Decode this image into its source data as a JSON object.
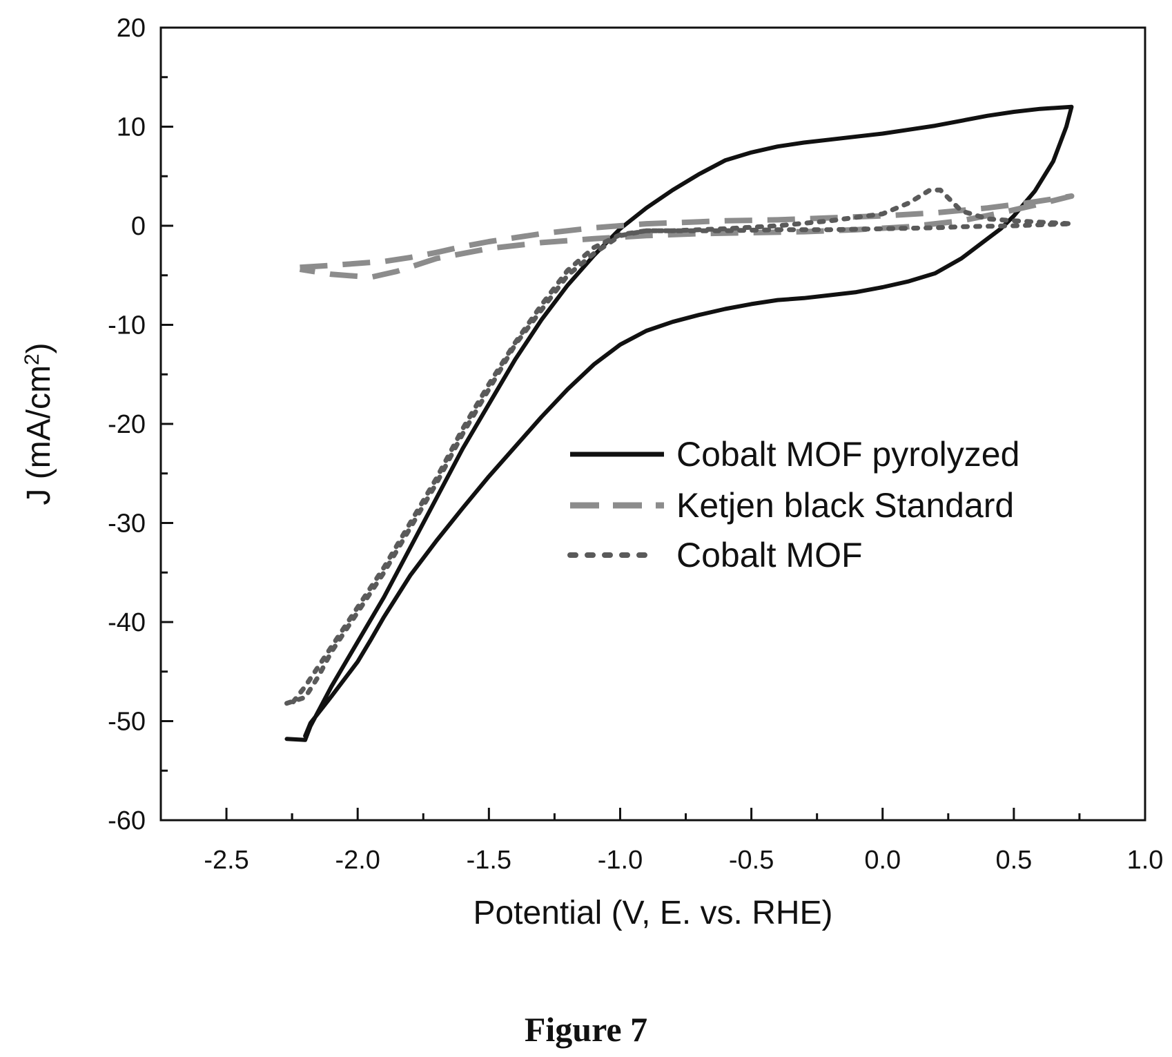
{
  "chart_data": {
    "type": "line",
    "xlabel": "Potential (V, E. vs. RHE)",
    "ylabel": "J (mA/cm²)",
    "ylabel_main": "J (mA/cm",
    "ylabel_sup": "2",
    "ylabel_close": ")",
    "xlim": [
      -2.75,
      1.0
    ],
    "ylim": [
      -60,
      20
    ],
    "xticks": [
      -2.5,
      -2.0,
      -1.5,
      -1.0,
      -0.5,
      0.0,
      0.5,
      1.0
    ],
    "xtick_labels": [
      "-2.5",
      "-2.0",
      "-1.5",
      "-1.0",
      "-0.5",
      "0.0",
      "0.5",
      "1.0"
    ],
    "yticks": [
      20,
      10,
      0,
      -10,
      -20,
      -30,
      -40,
      -50,
      -60
    ],
    "ytick_labels": [
      "20",
      "10",
      "0",
      "-10",
      "-20",
      "-30",
      "-40",
      "-50",
      "-60"
    ],
    "legend_position": "center-right",
    "grid": false,
    "series": [
      {
        "name": "Cobalt MOF pyrolyzed",
        "style": "solid",
        "color": "#111111",
        "points": [
          [
            -2.27,
            -51.8
          ],
          [
            -2.2,
            -51.9
          ],
          [
            -2.18,
            -50.5
          ],
          [
            -2.1,
            -46.5
          ],
          [
            -2.0,
            -42.0
          ],
          [
            -1.9,
            -37.5
          ],
          [
            -1.8,
            -32.5
          ],
          [
            -1.7,
            -27.5
          ],
          [
            -1.6,
            -22.5
          ],
          [
            -1.5,
            -18.0
          ],
          [
            -1.4,
            -13.5
          ],
          [
            -1.3,
            -9.5
          ],
          [
            -1.2,
            -6.0
          ],
          [
            -1.1,
            -3.0
          ],
          [
            -1.0,
            -0.3
          ],
          [
            -0.9,
            1.8
          ],
          [
            -0.8,
            3.6
          ],
          [
            -0.7,
            5.2
          ],
          [
            -0.6,
            6.6
          ],
          [
            -0.5,
            7.4
          ],
          [
            -0.4,
            8.0
          ],
          [
            -0.3,
            8.4
          ],
          [
            -0.2,
            8.7
          ],
          [
            -0.1,
            9.0
          ],
          [
            0.0,
            9.3
          ],
          [
            0.1,
            9.7
          ],
          [
            0.2,
            10.1
          ],
          [
            0.3,
            10.6
          ],
          [
            0.4,
            11.1
          ],
          [
            0.5,
            11.5
          ],
          [
            0.6,
            11.8
          ],
          [
            0.72,
            12.0
          ],
          [
            0.7,
            10.0
          ],
          [
            0.65,
            6.5
          ],
          [
            0.58,
            3.5
          ],
          [
            0.5,
            1.0
          ],
          [
            0.45,
            -0.3
          ],
          [
            0.4,
            -1.3
          ],
          [
            0.3,
            -3.3
          ],
          [
            0.2,
            -4.8
          ],
          [
            0.1,
            -5.6
          ],
          [
            0.0,
            -6.2
          ],
          [
            -0.1,
            -6.7
          ],
          [
            -0.2,
            -7.0
          ],
          [
            -0.3,
            -7.3
          ],
          [
            -0.4,
            -7.5
          ],
          [
            -0.5,
            -7.9
          ],
          [
            -0.6,
            -8.4
          ],
          [
            -0.7,
            -9.0
          ],
          [
            -0.8,
            -9.7
          ],
          [
            -0.9,
            -10.6
          ],
          [
            -1.0,
            -12.0
          ],
          [
            -1.1,
            -14.0
          ],
          [
            -1.2,
            -16.5
          ],
          [
            -1.3,
            -19.3
          ],
          [
            -1.4,
            -22.3
          ],
          [
            -1.5,
            -25.3
          ],
          [
            -1.6,
            -28.5
          ],
          [
            -1.7,
            -31.8
          ],
          [
            -1.8,
            -35.3
          ],
          [
            -1.9,
            -39.5
          ],
          [
            -1.95,
            -41.8
          ],
          [
            -2.0,
            -44.0
          ],
          [
            -2.1,
            -47.5
          ],
          [
            -2.18,
            -50.2
          ],
          [
            -2.2,
            -51.5
          ]
        ]
      },
      {
        "name": "Ketjen black Standard",
        "style": "dashed",
        "color": "#8c8c8c",
        "points": [
          [
            -2.22,
            -4.2
          ],
          [
            -2.1,
            -4.0
          ],
          [
            -2.0,
            -3.8
          ],
          [
            -1.9,
            -3.6
          ],
          [
            -1.8,
            -3.2
          ],
          [
            -1.7,
            -2.7
          ],
          [
            -1.6,
            -2.1
          ],
          [
            -1.5,
            -1.6
          ],
          [
            -1.4,
            -1.2
          ],
          [
            -1.3,
            -0.8
          ],
          [
            -1.2,
            -0.5
          ],
          [
            -1.1,
            -0.2
          ],
          [
            -1.0,
            0.0
          ],
          [
            -0.9,
            0.2
          ],
          [
            -0.8,
            0.3
          ],
          [
            -0.6,
            0.5
          ],
          [
            -0.4,
            0.6
          ],
          [
            -0.2,
            0.8
          ],
          [
            0.0,
            1.0
          ],
          [
            0.2,
            1.3
          ],
          [
            0.4,
            1.8
          ],
          [
            0.55,
            2.3
          ],
          [
            0.72,
            3.0
          ],
          [
            0.6,
            2.2
          ],
          [
            0.45,
            1.3
          ],
          [
            0.3,
            0.5
          ],
          [
            0.1,
            -0.1
          ],
          [
            -0.1,
            -0.4
          ],
          [
            -0.3,
            -0.6
          ],
          [
            -0.5,
            -0.7
          ],
          [
            -0.7,
            -0.8
          ],
          [
            -0.9,
            -1.0
          ],
          [
            -1.1,
            -1.3
          ],
          [
            -1.3,
            -1.7
          ],
          [
            -1.5,
            -2.3
          ],
          [
            -1.7,
            -3.3
          ],
          [
            -1.85,
            -4.6
          ],
          [
            -1.95,
            -5.2
          ],
          [
            -2.1,
            -4.9
          ],
          [
            -2.22,
            -4.4
          ]
        ]
      },
      {
        "name": "Cobalt MOF",
        "style": "dotted",
        "color": "#5a5a5a",
        "points": [
          [
            -2.27,
            -48.2
          ],
          [
            -2.2,
            -47.6
          ],
          [
            -2.15,
            -45.5
          ],
          [
            -2.1,
            -43.0
          ],
          [
            -2.0,
            -39.0
          ],
          [
            -1.9,
            -35.0
          ],
          [
            -1.8,
            -30.5
          ],
          [
            -1.7,
            -26.0
          ],
          [
            -1.6,
            -21.0
          ],
          [
            -1.5,
            -16.5
          ],
          [
            -1.4,
            -12.0
          ],
          [
            -1.3,
            -8.5
          ],
          [
            -1.2,
            -5.0
          ],
          [
            -1.1,
            -2.8
          ],
          [
            -1.0,
            -1.0
          ],
          [
            -0.9,
            -0.5
          ],
          [
            -0.8,
            -0.5
          ],
          [
            -0.6,
            -0.3
          ],
          [
            -0.4,
            0.0
          ],
          [
            -0.2,
            0.5
          ],
          [
            0.0,
            1.2
          ],
          [
            0.1,
            2.3
          ],
          [
            0.18,
            3.6
          ],
          [
            0.22,
            3.6
          ],
          [
            0.3,
            1.5
          ],
          [
            0.4,
            0.7
          ],
          [
            0.5,
            0.5
          ],
          [
            0.72,
            0.2
          ],
          [
            0.6,
            0.1
          ],
          [
            0.5,
            0.0
          ],
          [
            0.3,
            -0.1
          ],
          [
            0.2,
            -0.2
          ],
          [
            0.0,
            -0.3
          ],
          [
            -0.2,
            -0.4
          ],
          [
            -0.4,
            -0.4
          ],
          [
            -0.6,
            -0.5
          ],
          [
            -0.8,
            -0.5
          ],
          [
            -0.9,
            -0.5
          ],
          [
            -1.0,
            -0.9
          ],
          [
            -1.1,
            -2.2
          ],
          [
            -1.2,
            -4.5
          ],
          [
            -1.3,
            -8.0
          ],
          [
            -1.4,
            -11.8
          ],
          [
            -1.5,
            -16.0
          ],
          [
            -1.6,
            -20.5
          ],
          [
            -1.7,
            -25.5
          ],
          [
            -1.8,
            -30.0
          ],
          [
            -1.9,
            -34.5
          ],
          [
            -2.0,
            -38.5
          ],
          [
            -2.1,
            -42.5
          ],
          [
            -2.2,
            -46.5
          ],
          [
            -2.25,
            -48.2
          ]
        ]
      }
    ]
  },
  "caption": "Figure 7"
}
